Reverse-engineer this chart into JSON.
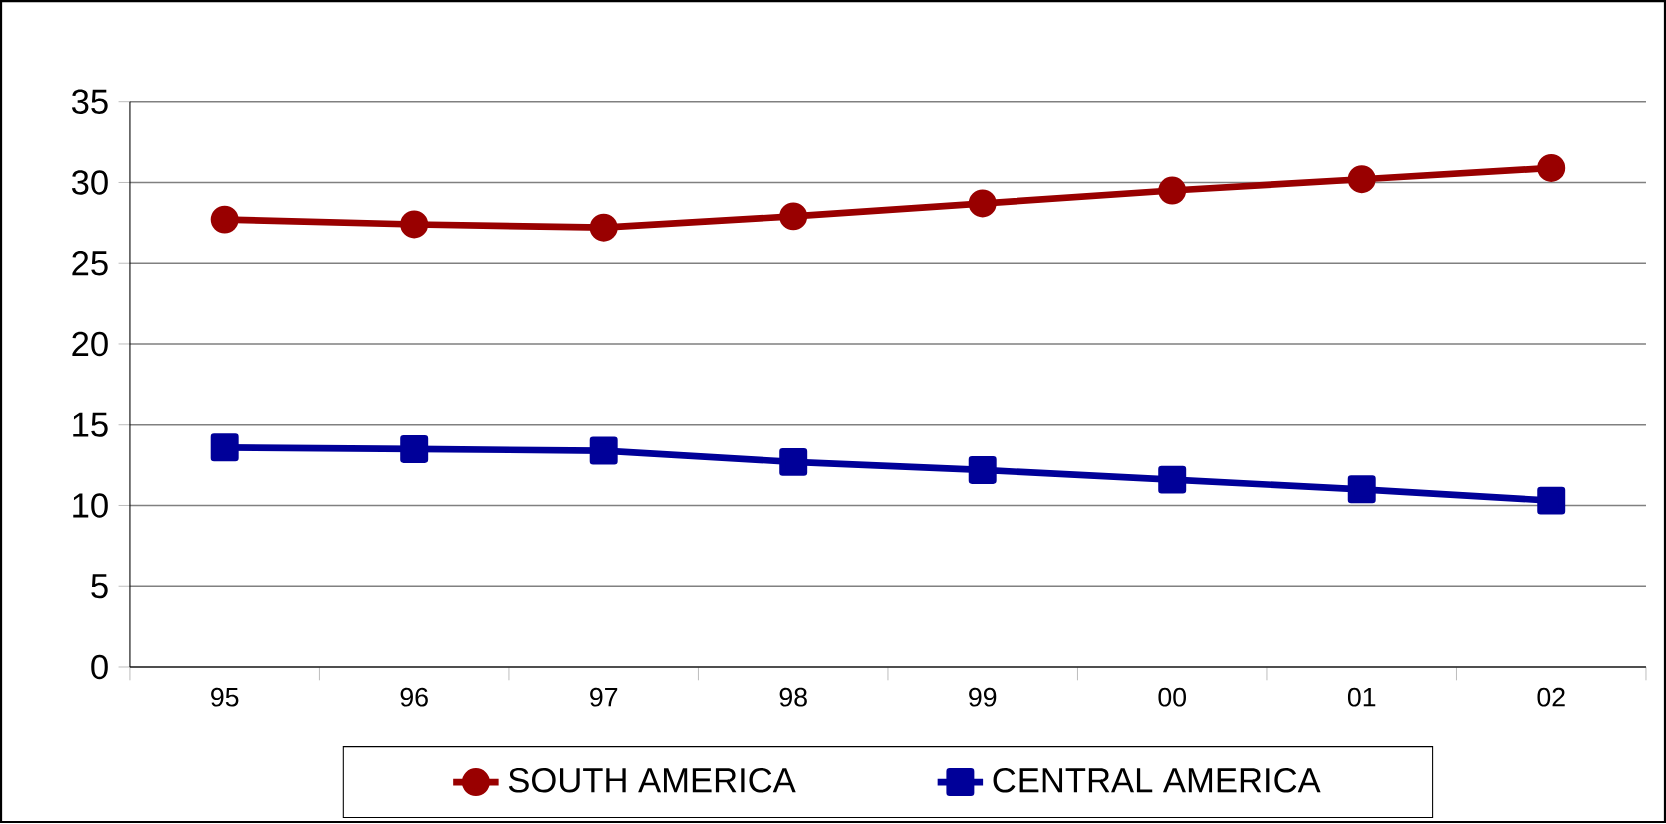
{
  "chart_data": {
    "type": "line",
    "categories": [
      "95",
      "96",
      "97",
      "98",
      "99",
      "00",
      "01",
      "02"
    ],
    "series": [
      {
        "name": "SOUTH AMERICA",
        "color": "#990000",
        "marker": "circle",
        "values": [
          27.7,
          27.4,
          27.2,
          27.9,
          28.7,
          29.5,
          30.2,
          30.9
        ]
      },
      {
        "name": "CENTRAL AMERICA",
        "color": "#000099",
        "marker": "square",
        "values": [
          13.6,
          13.5,
          13.4,
          12.7,
          12.2,
          11.6,
          11.0,
          10.3
        ]
      }
    ],
    "ylim": [
      0,
      35
    ],
    "yticks": [
      0,
      5,
      10,
      15,
      20,
      25,
      30,
      35
    ],
    "grid": "y",
    "legend": "bottom",
    "line_style": "solid"
  }
}
